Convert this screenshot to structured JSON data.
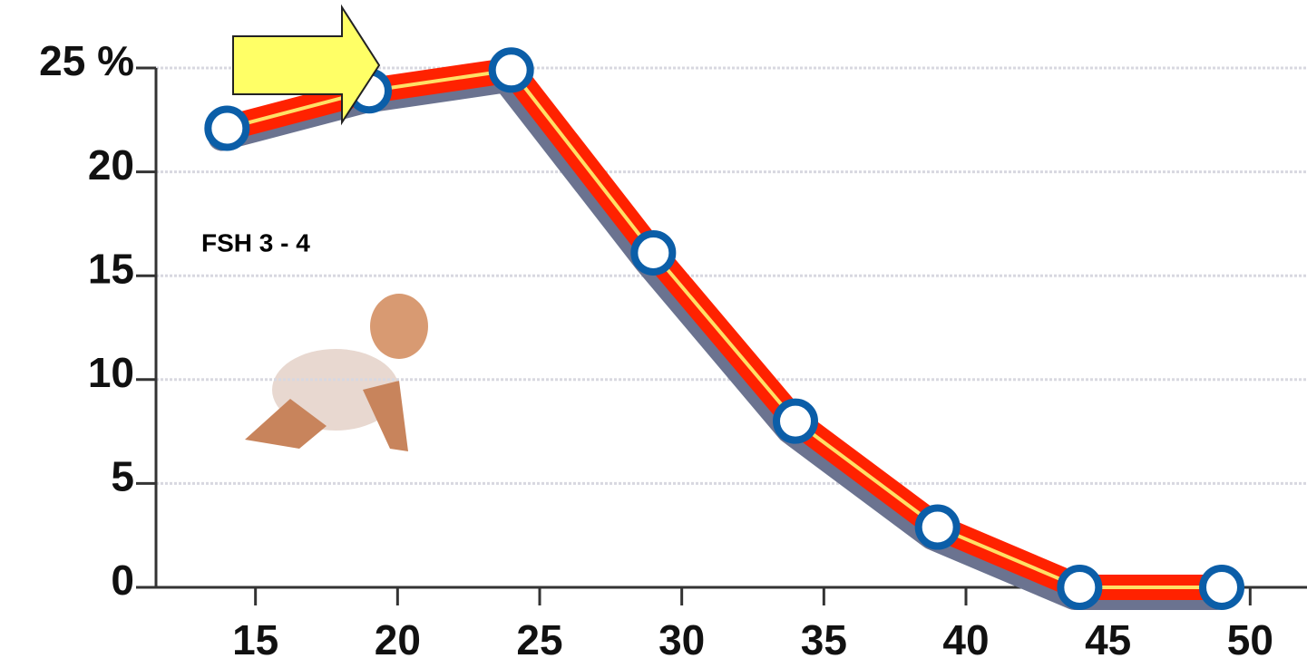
{
  "chart_data": {
    "type": "line",
    "annotation": "FSH 3 - 4",
    "x": [
      14,
      19,
      24,
      29,
      34,
      39,
      44,
      49
    ],
    "series": [
      {
        "color": "#ff2200",
        "marker_color": "#0b5ea8",
        "values": [
          22.1,
          23.9,
          24.9,
          16.1,
          8.0,
          2.9,
          0,
          0
        ]
      }
    ],
    "xlim": [
      11.5,
      52
    ],
    "xticks": [
      15,
      20,
      25,
      30,
      35,
      40,
      45,
      50
    ],
    "ylim": [
      0,
      25
    ],
    "yticks": [
      0,
      5,
      10,
      15,
      20,
      {
        "value": 25,
        "label": "25 %"
      }
    ],
    "grid": true
  }
}
